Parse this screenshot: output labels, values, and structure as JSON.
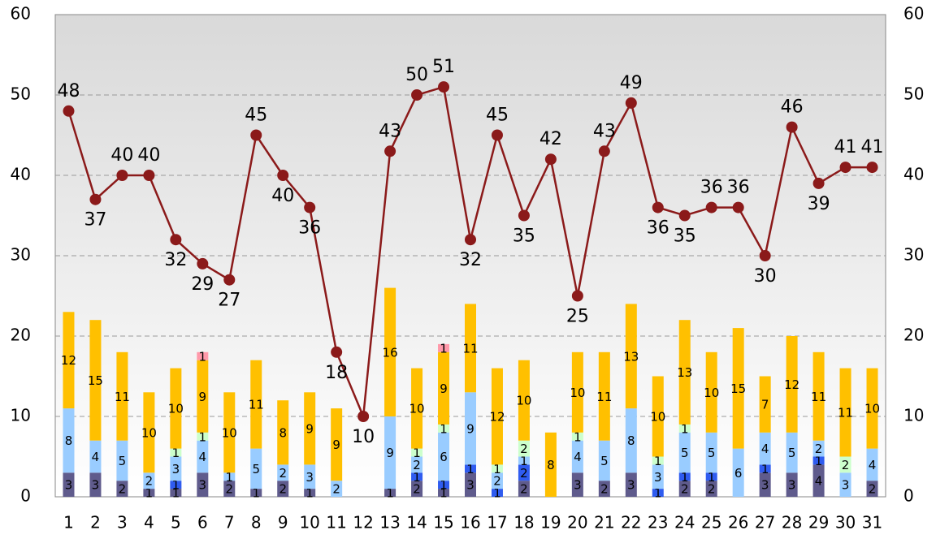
{
  "chart_data": {
    "type": "bar-line",
    "categories": [
      "1",
      "2",
      "3",
      "4",
      "5",
      "6",
      "7",
      "8",
      "9",
      "10",
      "11",
      "12",
      "13",
      "14",
      "15",
      "16",
      "17",
      "18",
      "19",
      "20",
      "21",
      "22",
      "23",
      "24",
      "25",
      "26",
      "27",
      "28",
      "29",
      "30",
      "31"
    ],
    "series": [
      {
        "type": "bar",
        "color": "#5f5b8c",
        "values": [
          3,
          3,
          2,
          1,
          1,
          3,
          2,
          1,
          2,
          1,
          null,
          null,
          1,
          2,
          1,
          3,
          null,
          2,
          null,
          3,
          2,
          3,
          null,
          2,
          2,
          null,
          3,
          3,
          4,
          null,
          2
        ]
      },
      {
        "type": "bar",
        "color": "#2f5cf0",
        "values": [
          null,
          null,
          null,
          null,
          1,
          null,
          null,
          null,
          null,
          null,
          null,
          null,
          null,
          1,
          1,
          1,
          1,
          2,
          null,
          null,
          null,
          null,
          1,
          1,
          1,
          null,
          1,
          null,
          1,
          null,
          null
        ]
      },
      {
        "type": "bar",
        "color": "#99ccff",
        "values": [
          8,
          4,
          5,
          2,
          3,
          4,
          1,
          5,
          2,
          3,
          2,
          null,
          9,
          2,
          6,
          9,
          2,
          1,
          null,
          4,
          5,
          8,
          3,
          5,
          5,
          6,
          4,
          5,
          2,
          3,
          4
        ]
      },
      {
        "type": "bar",
        "color": "#ccffcc",
        "values": [
          null,
          null,
          null,
          null,
          1,
          1,
          null,
          null,
          null,
          null,
          null,
          null,
          null,
          1,
          1,
          null,
          1,
          2,
          null,
          1,
          null,
          null,
          1,
          1,
          null,
          null,
          null,
          null,
          null,
          2,
          null
        ]
      },
      {
        "type": "bar",
        "color": "#ffc000",
        "values": [
          12,
          15,
          11,
          10,
          10,
          9,
          10,
          11,
          8,
          9,
          9,
          null,
          16,
          10,
          9,
          11,
          12,
          10,
          8,
          10,
          11,
          13,
          10,
          13,
          10,
          15,
          7,
          12,
          11,
          11,
          10
        ]
      },
      {
        "type": "bar",
        "color": "#ff99aa",
        "values": [
          null,
          null,
          null,
          null,
          null,
          1,
          null,
          null,
          null,
          null,
          null,
          null,
          null,
          null,
          1,
          null,
          null,
          null,
          null,
          null,
          null,
          null,
          null,
          null,
          null,
          null,
          null,
          null,
          null,
          null,
          null
        ]
      },
      {
        "type": "line",
        "color": "#8b1a1a",
        "values": [
          48,
          37,
          40,
          40,
          32,
          29,
          27,
          45,
          40,
          36,
          18,
          10,
          43,
          50,
          51,
          32,
          45,
          35,
          42,
          25,
          43,
          49,
          36,
          35,
          36,
          36,
          30,
          46,
          39,
          41,
          41
        ]
      }
    ],
    "ylim": [
      0,
      60
    ],
    "yticks": [
      0,
      10,
      20,
      30,
      40,
      50,
      60
    ],
    "y2lim": [
      0,
      60
    ],
    "y2ticks": [
      0,
      10,
      20,
      30,
      40,
      50,
      60
    ],
    "grid": true
  }
}
